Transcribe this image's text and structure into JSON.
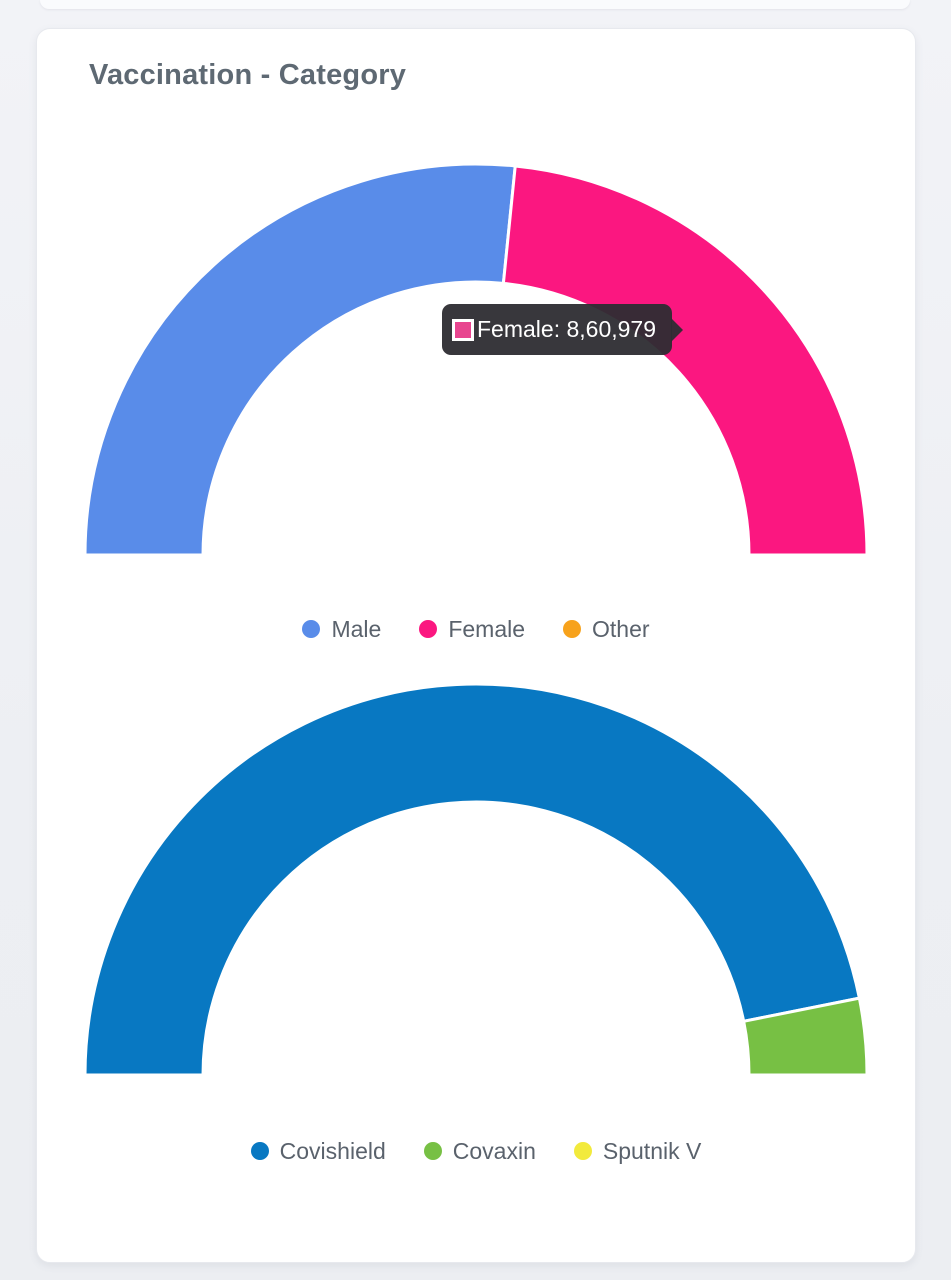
{
  "page": {
    "background": "#edeff3",
    "top_strip_color": "#fafbfd"
  },
  "card": {
    "background": "#ffffff",
    "border_color": "#e7e9ee"
  },
  "header": {
    "title": "Vaccination - Category",
    "color": "#5e6973"
  },
  "tooltip": {
    "label": "Female",
    "value": "8,60,979",
    "text": "Female: 8,60,979",
    "background": "#2e2d33",
    "swatch_color": "#e8458f",
    "text_color": "#ffffff"
  },
  "chart_data": [
    {
      "type": "pie",
      "subtype": "semi-donut",
      "name": "gender",
      "legend_position": "bottom",
      "grid": false,
      "series": [
        {
          "name": "Male",
          "color": "#598ce9",
          "fraction_est": 0.532
        },
        {
          "name": "Female",
          "color": "#fb1780",
          "fraction_est": 0.468,
          "value": 860979,
          "value_label": "8,60,979"
        },
        {
          "name": "Other",
          "color": "#f7a21c",
          "fraction_est": 0.0
        }
      ]
    },
    {
      "type": "pie",
      "subtype": "semi-donut",
      "name": "vaccine",
      "legend_position": "bottom",
      "grid": false,
      "series": [
        {
          "name": "Covishield",
          "color": "#0878c2",
          "fraction_est": 0.937
        },
        {
          "name": "Covaxin",
          "color": "#77c044",
          "fraction_est": 0.063
        },
        {
          "name": "Sputnik V",
          "color": "#f2ea3c",
          "fraction_est": 0.0
        }
      ]
    }
  ]
}
